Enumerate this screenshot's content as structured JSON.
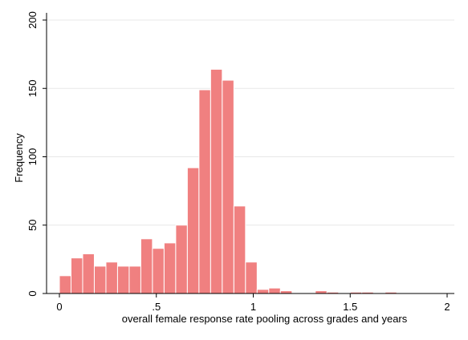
{
  "chart_data": {
    "type": "bar",
    "variant": "histogram",
    "xlabel": "overall female response rate pooling across grades and years",
    "ylabel": "Frequency",
    "xlim": [
      0,
      2
    ],
    "ylim": [
      0,
      200
    ],
    "x_ticks": [
      {
        "value": 0,
        "label": "0"
      },
      {
        "value": 0.5,
        "label": ".5"
      },
      {
        "value": 1,
        "label": "1"
      },
      {
        "value": 1.5,
        "label": "1.5"
      },
      {
        "value": 2,
        "label": "2"
      }
    ],
    "y_ticks": [
      {
        "value": 0,
        "label": "0"
      },
      {
        "value": 50,
        "label": "50"
      },
      {
        "value": 100,
        "label": "100"
      },
      {
        "value": 150,
        "label": "150"
      },
      {
        "value": 200,
        "label": "200"
      }
    ],
    "grid": true,
    "bin_width": 0.06,
    "bins": [
      {
        "start": 0.0,
        "end": 0.06,
        "count": 13
      },
      {
        "start": 0.06,
        "end": 0.12,
        "count": 26
      },
      {
        "start": 0.12,
        "end": 0.18,
        "count": 29
      },
      {
        "start": 0.18,
        "end": 0.24,
        "count": 20
      },
      {
        "start": 0.24,
        "end": 0.3,
        "count": 23
      },
      {
        "start": 0.3,
        "end": 0.36,
        "count": 20
      },
      {
        "start": 0.36,
        "end": 0.42,
        "count": 20
      },
      {
        "start": 0.42,
        "end": 0.48,
        "count": 40
      },
      {
        "start": 0.48,
        "end": 0.54,
        "count": 33
      },
      {
        "start": 0.54,
        "end": 0.6,
        "count": 37
      },
      {
        "start": 0.6,
        "end": 0.66,
        "count": 50
      },
      {
        "start": 0.66,
        "end": 0.72,
        "count": 92
      },
      {
        "start": 0.72,
        "end": 0.78,
        "count": 149
      },
      {
        "start": 0.78,
        "end": 0.84,
        "count": 164
      },
      {
        "start": 0.84,
        "end": 0.9,
        "count": 156
      },
      {
        "start": 0.9,
        "end": 0.96,
        "count": 64
      },
      {
        "start": 0.96,
        "end": 1.02,
        "count": 23
      },
      {
        "start": 1.02,
        "end": 1.08,
        "count": 3
      },
      {
        "start": 1.08,
        "end": 1.14,
        "count": 4
      },
      {
        "start": 1.14,
        "end": 1.2,
        "count": 2
      },
      {
        "start": 1.2,
        "end": 1.26,
        "count": 0
      },
      {
        "start": 1.26,
        "end": 1.32,
        "count": 0
      },
      {
        "start": 1.32,
        "end": 1.38,
        "count": 2
      },
      {
        "start": 1.38,
        "end": 1.44,
        "count": 1
      },
      {
        "start": 1.44,
        "end": 1.5,
        "count": 0
      },
      {
        "start": 1.5,
        "end": 1.56,
        "count": 1
      },
      {
        "start": 1.56,
        "end": 1.62,
        "count": 1
      },
      {
        "start": 1.62,
        "end": 1.68,
        "count": 0
      },
      {
        "start": 1.68,
        "end": 1.74,
        "count": 1
      }
    ],
    "colors": {
      "bar_fill": "#f08080",
      "bar_edge": "#ffffff",
      "grid": "#e8e8e8",
      "axis": "#000000"
    }
  }
}
